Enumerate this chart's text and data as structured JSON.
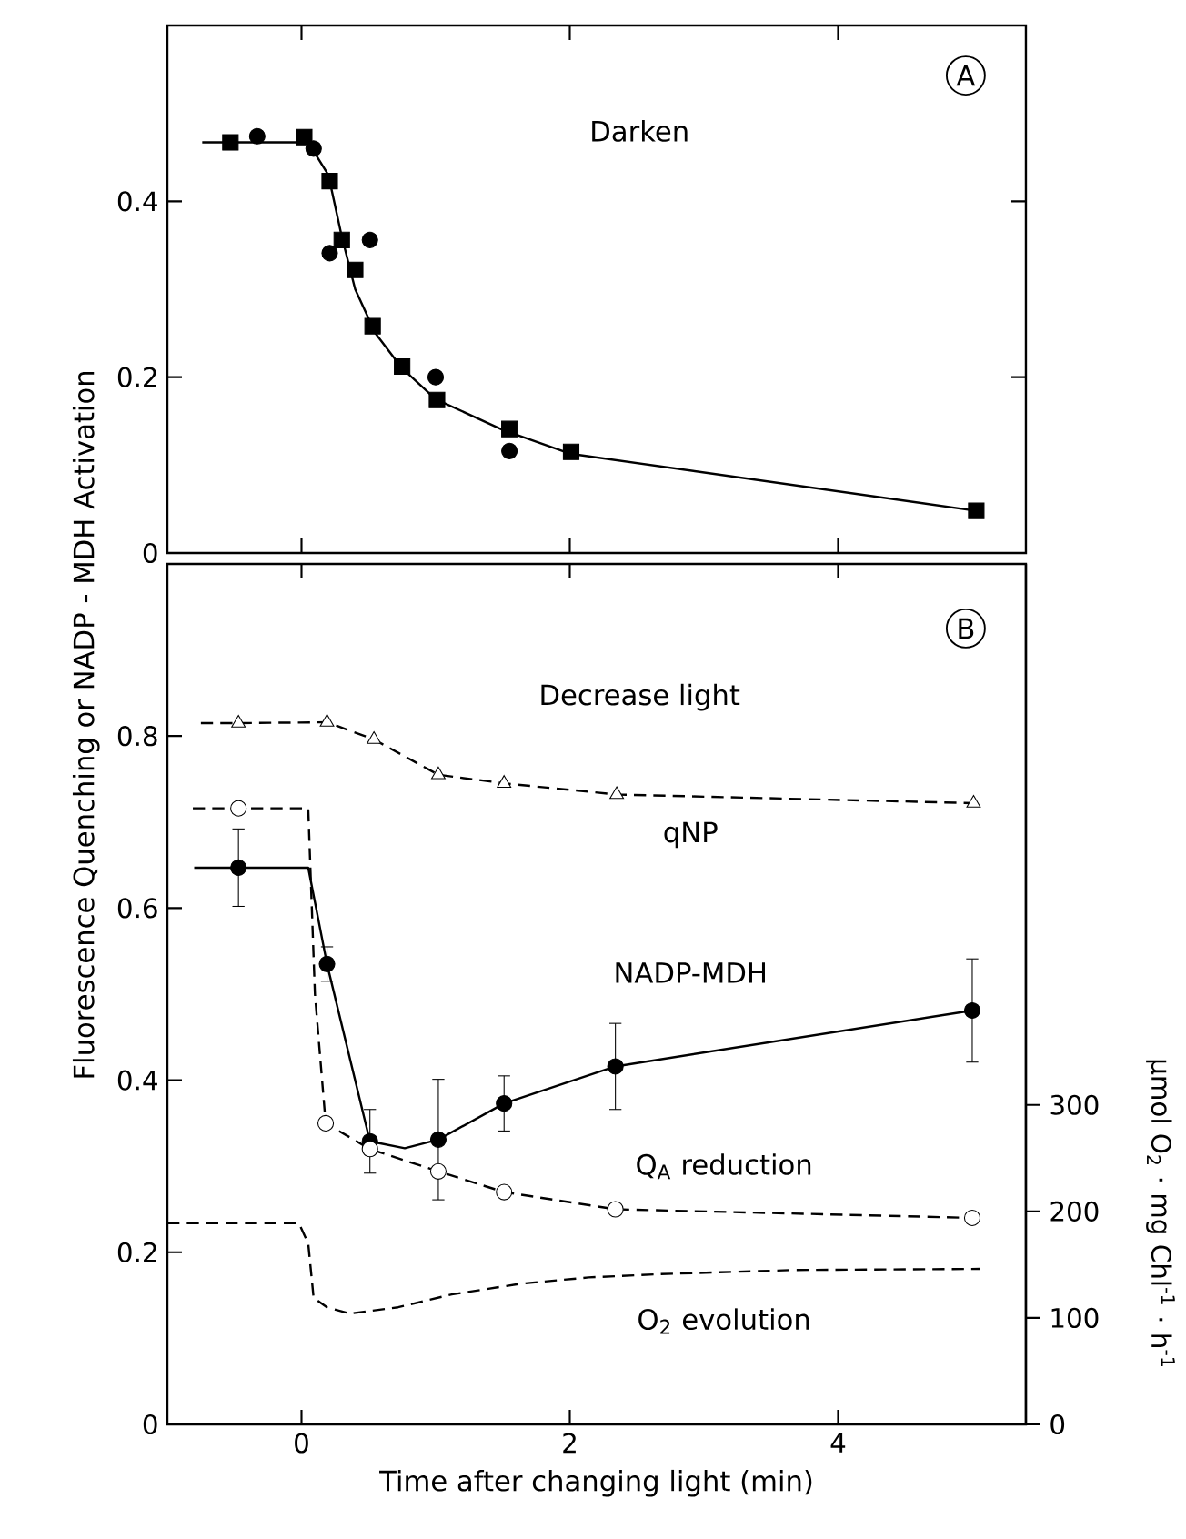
{
  "chart_data": [
    {
      "type": "scatter",
      "xlim": [
        -1,
        5.4
      ],
      "ylim": [
        0,
        0.6
      ],
      "xticks": [
        0,
        2,
        4
      ],
      "yticks": [
        0,
        0.2,
        0.4
      ],
      "tick_labels": "y",
      "annotations": [
        "A",
        "Darken"
      ],
      "series": [
        {
          "marker": "square",
          "color": "#000000",
          "x": [
            -0.53,
            0.02,
            0.21,
            0.3,
            0.4,
            0.53,
            0.75,
            1.01,
            1.55,
            2.01,
            5.03
          ],
          "values": [
            0.467,
            0.473,
            0.423,
            0.356,
            0.322,
            0.258,
            0.212,
            0.174,
            0.141,
            0.115,
            0.048
          ]
        },
        {
          "marker": "circle",
          "color": "#000000",
          "x": [
            -0.33,
            0.09,
            0.21,
            0.51,
            1.0,
            1.55
          ],
          "values": [
            0.474,
            0.46,
            0.341,
            0.356,
            0.2,
            0.116
          ]
        },
        {
          "type": "line",
          "marker": "none",
          "line_style": "solid",
          "color": "#000000",
          "x": [
            -0.74,
            0.05,
            0.2,
            0.3,
            0.4,
            0.55,
            0.75,
            1.0,
            1.5,
            2.0,
            5.03
          ],
          "values": [
            0.467,
            0.467,
            0.43,
            0.36,
            0.3,
            0.25,
            0.21,
            0.175,
            0.14,
            0.113,
            0.048
          ]
        }
      ]
    },
    {
      "type": "scatter",
      "xlim": [
        -1,
        5.4
      ],
      "ylim": [
        0,
        1.0
      ],
      "xticks": [
        0,
        2,
        4
      ],
      "yticks": [
        0,
        0.2,
        0.4,
        0.6,
        0.8
      ],
      "y2lim": [
        0,
        808
      ],
      "y2ticks": [
        0,
        100,
        200,
        300
      ],
      "xlabel": "Time after changing light (min)",
      "ylabel": "Fluorescence Quenching or NADP - MDH Activation",
      "y2label": "µmol O$_{2}$ · mg Chl$^{-1}$ · h$^{-1}$",
      "annotations": [
        "B",
        "Decrease light"
      ],
      "series": [
        {
          "name": "qNP",
          "marker": "triangle",
          "color": "#ffffff",
          "x": [
            -0.47,
            0.19,
            0.54,
            1.02,
            1.51,
            2.35,
            5.01
          ],
          "values": [
            0.815,
            0.816,
            0.796,
            0.755,
            0.745,
            0.732,
            0.722
          ]
        },
        {
          "type": "line",
          "marker": "none",
          "line_style": "dashed",
          "color": "#000000",
          "x": [
            -0.75,
            -0.47,
            0.19,
            0.54,
            1.02,
            1.51,
            2.35,
            5.01
          ],
          "values": [
            0.815,
            0.815,
            0.816,
            0.796,
            0.755,
            0.745,
            0.732,
            0.722
          ]
        },
        {
          "name": "NADP-MDH",
          "marker": "circle",
          "color": "#000000",
          "x": [
            -0.47,
            0.19,
            0.51,
            1.02,
            1.51,
            2.34,
            5.0
          ],
          "values": [
            0.647,
            0.535,
            0.329,
            0.331,
            0.373,
            0.416,
            0.481
          ],
          "errors": [
            0.045,
            0.02,
            0.037,
            0.07,
            0.032,
            0.05,
            0.06
          ]
        },
        {
          "type": "line",
          "marker": "none",
          "line_style": "solid",
          "color": "#000000",
          "x": [
            -0.8,
            0.05,
            0.19,
            0.51,
            0.77,
            1.02,
            1.51,
            2.34,
            5.0
          ],
          "values": [
            0.647,
            0.647,
            0.535,
            0.329,
            0.321,
            0.331,
            0.373,
            0.416,
            0.481
          ]
        },
        {
          "name": "Q$_{A}$ reduction",
          "marker": "circle",
          "color": "#ffffff",
          "x": [
            -0.47,
            0.18,
            0.51,
            1.02,
            1.51,
            2.34,
            5.0
          ],
          "values": [
            0.716,
            0.35,
            0.32,
            0.294,
            0.27,
            0.25,
            0.24
          ]
        },
        {
          "type": "line",
          "marker": "none",
          "line_style": "dashed",
          "color": "#000000",
          "x": [
            -0.81,
            0.05,
            0.1,
            0.18,
            0.51,
            1.02,
            1.51,
            2.34,
            5.0
          ],
          "values": [
            0.716,
            0.716,
            0.5,
            0.35,
            0.32,
            0.294,
            0.27,
            0.25,
            0.24
          ]
        },
        {
          "type": "line",
          "name": "O$_{2}$ evolution",
          "axis": "y2",
          "marker": "none",
          "line_style": "dashed",
          "color": "#000000",
          "x": [
            -1.0,
            -0.02,
            0.05,
            0.09,
            0.19,
            0.36,
            0.72,
            1.12,
            1.63,
            2.14,
            2.66,
            3.68,
            5.06
          ],
          "values": [
            189,
            189,
            170,
            119,
            110,
            104,
            110,
            122,
            132,
            138,
            141,
            145,
            146
          ]
        }
      ]
    }
  ]
}
